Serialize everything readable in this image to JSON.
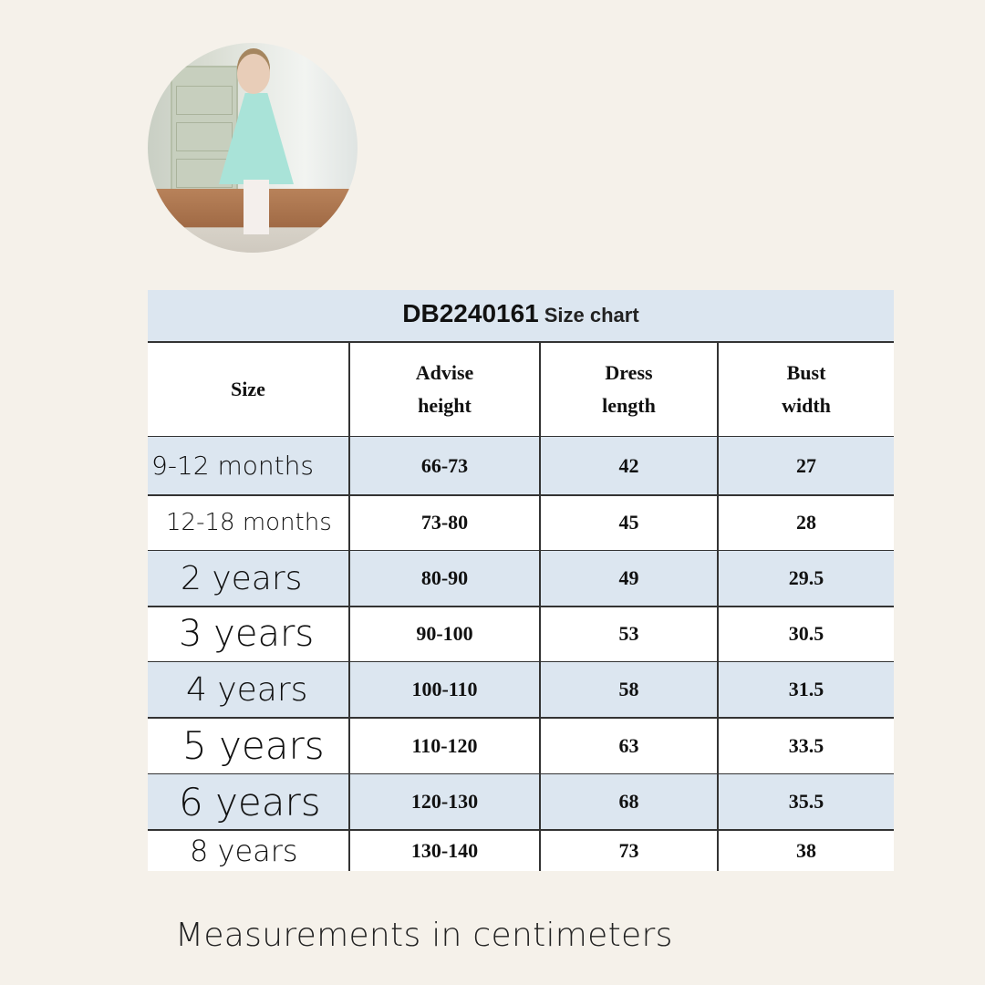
{
  "photo": {
    "alt": "girl-in-mint-tulle-dress"
  },
  "table": {
    "title_code": "DB2240161",
    "title_sub": "Size chart",
    "headers": [
      "Size",
      "Advise\nheight",
      "Dress\nlength",
      "Bust\nwidth"
    ],
    "rows": [
      {
        "size": "9-12 months",
        "height": "66-73",
        "length": "42",
        "bust": "27"
      },
      {
        "size": "12-18 months",
        "height": "73-80",
        "length": "45",
        "bust": "28"
      },
      {
        "size": "2 years",
        "height": "80-90",
        "length": "49",
        "bust": "29.5"
      },
      {
        "size": "3 years",
        "height": "90-100",
        "length": "53",
        "bust": "30.5"
      },
      {
        "size": "4 years",
        "height": "100-110",
        "length": "58",
        "bust": "31.5"
      },
      {
        "size": "5 years",
        "height": "110-120",
        "length": "63",
        "bust": "33.5"
      },
      {
        "size": "6 years",
        "height": "120-130",
        "length": "68",
        "bust": "35.5"
      },
      {
        "size": "8 years",
        "height": "130-140",
        "length": "73",
        "bust": "38"
      }
    ]
  },
  "footer": "Measurements in centimeters",
  "colors": {
    "background": "#f5f1ea",
    "row_alt": "#dce6f0",
    "grid": "#333333"
  }
}
